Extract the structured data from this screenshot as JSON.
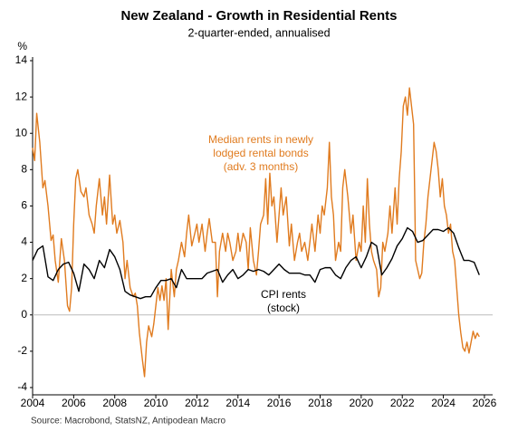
{
  "chart_data": {
    "type": "line",
    "title": "New Zealand - Growth in Residential Rents",
    "subtitle": "2-quarter-ended, annualised",
    "y_unit": "%",
    "source": "Source: Macrobond, StatsNZ, Antipodean Macro",
    "xlim": [
      2004,
      2026.4
    ],
    "xticks": [
      2004,
      2006,
      2008,
      2010,
      2012,
      2014,
      2016,
      2018,
      2020,
      2022,
      2024,
      2026
    ],
    "ylim": [
      -4.4,
      14.2
    ],
    "yticks": [
      -4,
      -2,
      0,
      2,
      4,
      6,
      8,
      10,
      12,
      14
    ],
    "series": [
      {
        "label": [
          "Median rents in newly",
          "lodged rental bonds",
          "(adv. 3 months)"
        ],
        "color": "#e07b1f",
        "x": [
          2004.0,
          2004.1,
          2004.2,
          2004.35,
          2004.5,
          2004.6,
          2004.75,
          2004.9,
          2005.0,
          2005.1,
          2005.25,
          2005.4,
          2005.55,
          2005.7,
          2005.8,
          2005.9,
          2006.0,
          2006.1,
          2006.2,
          2006.35,
          2006.5,
          2006.6,
          2006.75,
          2006.9,
          2007.0,
          2007.1,
          2007.25,
          2007.4,
          2007.5,
          2007.6,
          2007.75,
          2007.9,
          2008.0,
          2008.1,
          2008.25,
          2008.4,
          2008.5,
          2008.6,
          2008.75,
          2008.9,
          2009.0,
          2009.1,
          2009.2,
          2009.35,
          2009.45,
          2009.55,
          2009.65,
          2009.8,
          2009.9,
          2010.0,
          2010.1,
          2010.2,
          2010.3,
          2010.4,
          2010.5,
          2010.6,
          2010.75,
          2010.9,
          2011.0,
          2011.1,
          2011.25,
          2011.4,
          2011.5,
          2011.6,
          2011.75,
          2011.9,
          2012.0,
          2012.1,
          2012.25,
          2012.4,
          2012.5,
          2012.6,
          2012.75,
          2012.9,
          2013.0,
          2013.1,
          2013.25,
          2013.4,
          2013.5,
          2013.6,
          2013.75,
          2013.9,
          2014.0,
          2014.1,
          2014.25,
          2014.4,
          2014.5,
          2014.6,
          2014.75,
          2014.9,
          2015.0,
          2015.1,
          2015.25,
          2015.35,
          2015.45,
          2015.55,
          2015.65,
          2015.75,
          2015.9,
          2016.0,
          2016.1,
          2016.2,
          2016.35,
          2016.5,
          2016.6,
          2016.75,
          2016.9,
          2017.0,
          2017.1,
          2017.25,
          2017.4,
          2017.5,
          2017.6,
          2017.75,
          2017.9,
          2018.0,
          2018.1,
          2018.2,
          2018.35,
          2018.45,
          2018.55,
          2018.65,
          2018.75,
          2018.9,
          2019.0,
          2019.1,
          2019.2,
          2019.35,
          2019.5,
          2019.6,
          2019.75,
          2019.9,
          2020.0,
          2020.1,
          2020.2,
          2020.3,
          2020.4,
          2020.5,
          2020.6,
          2020.75,
          2020.85,
          2020.95,
          2021.05,
          2021.15,
          2021.3,
          2021.4,
          2021.5,
          2021.65,
          2021.75,
          2021.85,
          2021.95,
          2022.05,
          2022.15,
          2022.25,
          2022.35,
          2022.45,
          2022.55,
          2022.6,
          2022.65,
          2022.75,
          2022.85,
          2022.95,
          2023.05,
          2023.15,
          2023.25,
          2023.35,
          2023.45,
          2023.55,
          2023.65,
          2023.75,
          2023.85,
          2023.95,
          2024.05,
          2024.15,
          2024.25,
          2024.35,
          2024.45,
          2024.55,
          2024.65,
          2024.75,
          2024.85,
          2024.95,
          2025.05,
          2025.15,
          2025.25,
          2025.35,
          2025.45,
          2025.55,
          2025.65,
          2025.75
        ],
        "values": [
          9.2,
          8.5,
          11.1,
          9.5,
          7.0,
          7.4,
          6.0,
          4.1,
          4.4,
          3.0,
          1.8,
          4.2,
          3.0,
          0.5,
          0.2,
          1.5,
          5.0,
          7.5,
          8.0,
          6.8,
          6.5,
          7.0,
          5.5,
          5.0,
          4.5,
          6.0,
          7.5,
          5.5,
          6.5,
          5.0,
          7.7,
          5.0,
          5.5,
          4.5,
          5.2,
          4.0,
          2.0,
          3.0,
          1.5,
          1.0,
          1.2,
          0.5,
          -1.0,
          -2.5,
          -3.4,
          -1.5,
          -0.6,
          -1.2,
          -0.5,
          0.5,
          1.5,
          0.8,
          1.6,
          0.8,
          2.0,
          -0.8,
          2.5,
          1.0,
          2.5,
          3.0,
          4.0,
          3.2,
          4.5,
          5.5,
          3.8,
          4.5,
          5.0,
          4.0,
          5.0,
          3.5,
          4.5,
          5.3,
          4.0,
          4.0,
          1.0,
          3.5,
          4.5,
          3.5,
          4.5,
          4.0,
          3.0,
          3.5,
          4.5,
          3.5,
          4.5,
          4.0,
          2.5,
          4.8,
          3.0,
          2.2,
          3.5,
          5.0,
          5.5,
          7.5,
          5.0,
          7.8,
          6.0,
          6.5,
          4.0,
          5.5,
          7.0,
          5.5,
          6.5,
          3.8,
          5.0,
          3.0,
          4.0,
          4.5,
          3.5,
          4.0,
          3.0,
          4.0,
          5.0,
          3.5,
          5.5,
          4.5,
          6.0,
          5.5,
          7.0,
          9.5,
          6.5,
          5.5,
          3.0,
          4.0,
          3.5,
          7.0,
          8.0,
          6.5,
          4.5,
          5.5,
          3.0,
          4.0,
          3.5,
          6.0,
          4.0,
          7.5,
          5.0,
          3.5,
          3.0,
          2.5,
          1.0,
          1.5,
          4.0,
          3.5,
          4.5,
          6.0,
          4.5,
          7.0,
          5.0,
          7.5,
          9.0,
          11.5,
          12.0,
          11.0,
          12.5,
          11.5,
          10.5,
          7.0,
          3.0,
          2.5,
          2.0,
          2.3,
          4.0,
          5.0,
          6.5,
          7.5,
          8.5,
          9.5,
          9.0,
          8.0,
          6.5,
          7.5,
          6.0,
          5.5,
          4.5,
          5.0,
          3.5,
          3.0,
          1.5,
          0.0,
          -1.0,
          -1.8,
          -2.0,
          -1.5,
          -2.1,
          -1.5,
          -0.9,
          -1.3,
          -1.0,
          -1.2
        ]
      },
      {
        "label": [
          "CPI rents",
          "(stock)"
        ],
        "color": "#000000",
        "x": [
          2004.0,
          2004.25,
          2004.5,
          2004.75,
          2005.0,
          2005.25,
          2005.5,
          2005.75,
          2006.0,
          2006.25,
          2006.5,
          2006.75,
          2007.0,
          2007.25,
          2007.5,
          2007.75,
          2008.0,
          2008.25,
          2008.5,
          2008.75,
          2009.0,
          2009.25,
          2009.5,
          2009.75,
          2010.0,
          2010.25,
          2010.5,
          2010.75,
          2011.0,
          2011.25,
          2011.5,
          2011.75,
          2012.0,
          2012.25,
          2012.5,
          2012.75,
          2013.0,
          2013.25,
          2013.5,
          2013.75,
          2014.0,
          2014.25,
          2014.5,
          2014.75,
          2015.0,
          2015.25,
          2015.5,
          2015.75,
          2016.0,
          2016.25,
          2016.5,
          2016.75,
          2017.0,
          2017.25,
          2017.5,
          2017.75,
          2018.0,
          2018.25,
          2018.5,
          2018.75,
          2019.0,
          2019.25,
          2019.5,
          2019.75,
          2020.0,
          2020.25,
          2020.5,
          2020.75,
          2021.0,
          2021.25,
          2021.5,
          2021.75,
          2022.0,
          2022.25,
          2022.5,
          2022.75,
          2023.0,
          2023.25,
          2023.5,
          2023.75,
          2024.0,
          2024.25,
          2024.5,
          2024.75,
          2025.0,
          2025.25,
          2025.5,
          2025.75
        ],
        "values": [
          3.0,
          3.6,
          3.8,
          2.1,
          1.9,
          2.5,
          2.8,
          2.9,
          2.3,
          1.3,
          2.8,
          2.5,
          2.0,
          3.0,
          2.6,
          3.6,
          3.2,
          2.5,
          1.3,
          1.1,
          1.0,
          0.9,
          1.0,
          1.0,
          1.5,
          1.9,
          1.9,
          2.0,
          1.5,
          2.5,
          2.0,
          2.0,
          2.0,
          2.0,
          2.3,
          2.4,
          2.5,
          1.8,
          2.2,
          2.5,
          2.0,
          2.2,
          2.5,
          2.4,
          2.5,
          2.4,
          2.2,
          2.5,
          2.8,
          2.5,
          2.3,
          2.3,
          2.3,
          2.2,
          2.2,
          1.8,
          2.5,
          2.6,
          2.6,
          2.2,
          2.0,
          2.6,
          3.0,
          3.2,
          2.6,
          3.2,
          4.0,
          3.8,
          2.2,
          2.6,
          3.1,
          3.8,
          4.2,
          4.8,
          4.6,
          4.0,
          4.1,
          4.4,
          4.7,
          4.7,
          4.6,
          4.8,
          4.5,
          3.7,
          3.0,
          3.0,
          2.9,
          2.2
        ]
      }
    ]
  }
}
